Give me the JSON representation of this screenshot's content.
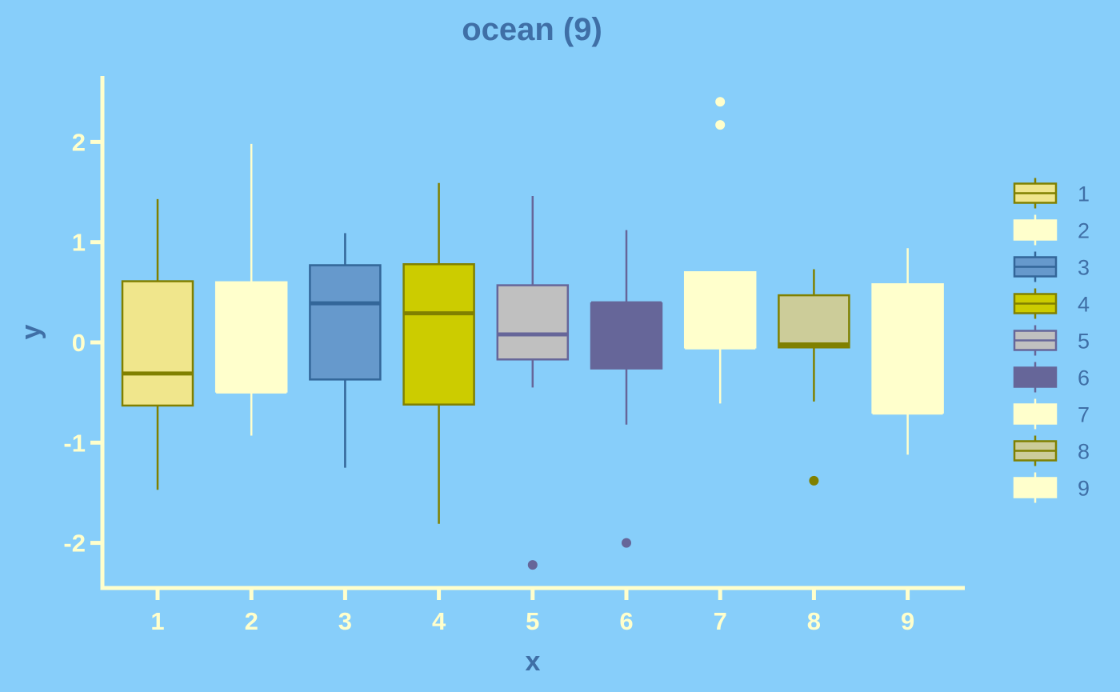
{
  "colors": {
    "background": "#87cefa",
    "axis": "#ffffcc",
    "title": "#3f6fa6",
    "tick_label": "#ffffcc",
    "legend_text": "#3f6fa6"
  },
  "chart_data": {
    "type": "boxplot",
    "title": "ocean (9)",
    "xlabel": "x",
    "ylabel": "y",
    "ylim": [
      -2.45,
      2.65
    ],
    "yticks": [
      -2,
      -1,
      0,
      1,
      2
    ],
    "categories": [
      "1",
      "2",
      "3",
      "4",
      "5",
      "6",
      "7",
      "8",
      "9"
    ],
    "grid": false,
    "legend_position": "right",
    "series": [
      {
        "name": "1",
        "fill": "#f0e68c",
        "line": "#808000",
        "whisker_low": -1.47,
        "q1": -0.63,
        "median": -0.31,
        "q3": 0.61,
        "whisker_high": 1.43,
        "outliers": []
      },
      {
        "name": "2",
        "fill": "#ffffcc",
        "line": "#ffffcc",
        "whisker_low": -0.93,
        "q1": -0.49,
        "median": -0.49,
        "q3": 0.6,
        "whisker_high": 1.98,
        "outliers": []
      },
      {
        "name": "3",
        "fill": "#6699cc",
        "line": "#336699",
        "whisker_low": -1.25,
        "q1": -0.37,
        "median": 0.39,
        "q3": 0.77,
        "whisker_high": 1.09,
        "outliers": []
      },
      {
        "name": "4",
        "fill": "#cccc00",
        "line": "#808000",
        "whisker_low": -1.81,
        "q1": -0.62,
        "median": 0.29,
        "q3": 0.78,
        "whisker_high": 1.59,
        "outliers": []
      },
      {
        "name": "5",
        "fill": "#c0c0c0",
        "line": "#666699",
        "whisker_low": -0.45,
        "q1": -0.17,
        "median": 0.08,
        "q3": 0.57,
        "whisker_high": 1.46,
        "outliers": [
          -2.22
        ]
      },
      {
        "name": "6",
        "fill": "#666699",
        "line": "#666699",
        "whisker_low": -0.82,
        "q1": -0.26,
        "median": 0.39,
        "q3": 0.39,
        "whisker_high": 1.12,
        "outliers": [
          -2.0
        ]
      },
      {
        "name": "7",
        "fill": "#ffffcc",
        "line": "#ffffcc",
        "whisker_low": -0.61,
        "q1": -0.05,
        "median": -0.05,
        "q3": 0.7,
        "whisker_high": 0.7,
        "outliers": [
          2.17,
          2.4
        ]
      },
      {
        "name": "8",
        "fill": "#cccc99",
        "line": "#808000",
        "whisker_low": -0.59,
        "q1": -0.05,
        "median": -0.02,
        "q3": 0.47,
        "whisker_high": 0.73,
        "outliers": [
          -1.38
        ]
      },
      {
        "name": "9",
        "fill": "#ffffcc",
        "line": "#ffffcc",
        "whisker_low": -1.12,
        "q1": -0.7,
        "median": -0.7,
        "q3": 0.58,
        "whisker_high": 0.94,
        "outliers": []
      }
    ]
  }
}
